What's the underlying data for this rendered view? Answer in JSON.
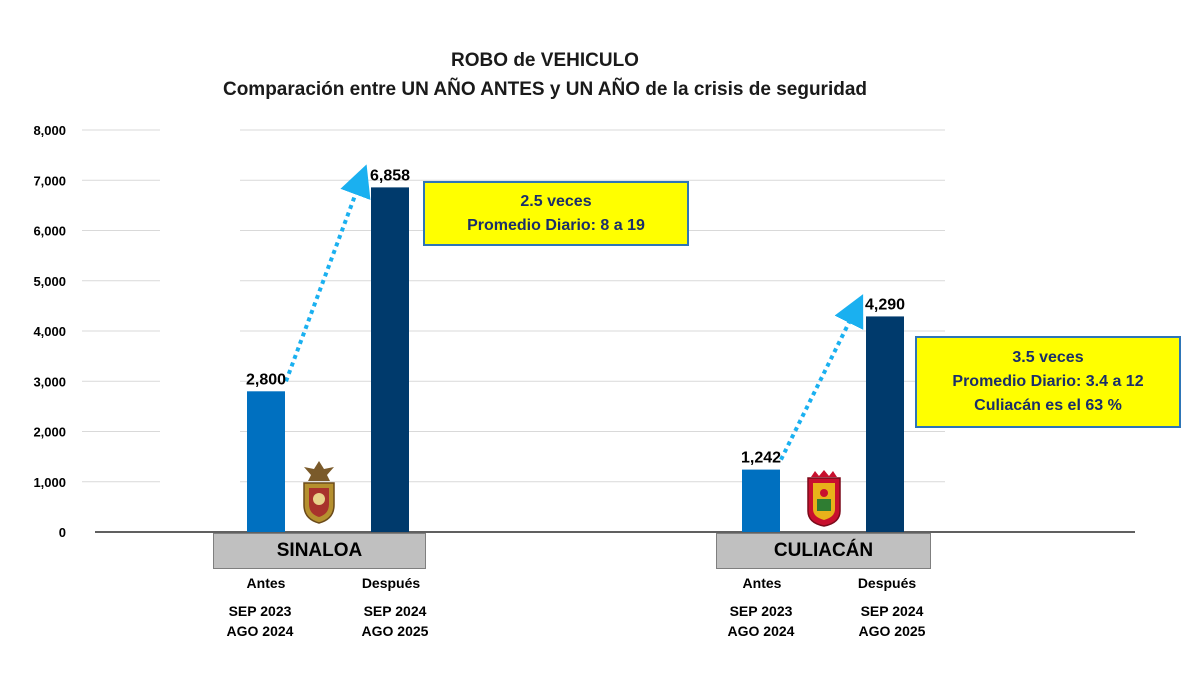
{
  "chart_data": {
    "type": "bar",
    "title": "ROBO de VEHICULO",
    "subtitle": "Comparación entre  UN AÑO ANTES  y UN AÑO de la crisis de seguridad",
    "ylim": [
      0,
      8000
    ],
    "yticks": [
      "0",
      "1,000",
      "2,000",
      "3,000",
      "4,000",
      "5,000",
      "6,000",
      "7,000",
      "8,000"
    ],
    "grid": true,
    "groups": [
      {
        "name": "SINALOA",
        "bars": [
          {
            "label": "Antes",
            "period1": "SEP 2023",
            "period2": "AGO 2024",
            "value": 2800,
            "value_label": "2,800",
            "color": "#0070c0"
          },
          {
            "label": "Después",
            "period1": "SEP 2024",
            "period2": "AGO 2025",
            "value": 6858,
            "value_label": "6,858",
            "color": "#003a6c"
          }
        ],
        "callout": [
          "2.5 veces",
          "Promedio Diario: 8 a 19"
        ]
      },
      {
        "name": "CULIACÁN",
        "bars": [
          {
            "label": "Antes",
            "period1": "SEP 2023",
            "period2": "AGO 2024",
            "value": 1242,
            "value_label": "1,242",
            "color": "#0070c0"
          },
          {
            "label": "Después",
            "period1": "SEP 2024",
            "period2": "AGO 2025",
            "value": 4290,
            "value_label": "4,290",
            "color": "#003a6c"
          }
        ],
        "callout": [
          "3.5 veces",
          "Promedio Diario: 3.4 a 12",
          "Culiacán es el 63 %"
        ]
      }
    ]
  },
  "colors": {
    "arrow": "#1ab0f0",
    "callout_bg": "#ffff00",
    "callout_border": "#2e75b6",
    "grid": "#d9d9d9"
  },
  "icons": [
    "sinaloa-seal-icon",
    "culiacan-seal-icon"
  ]
}
